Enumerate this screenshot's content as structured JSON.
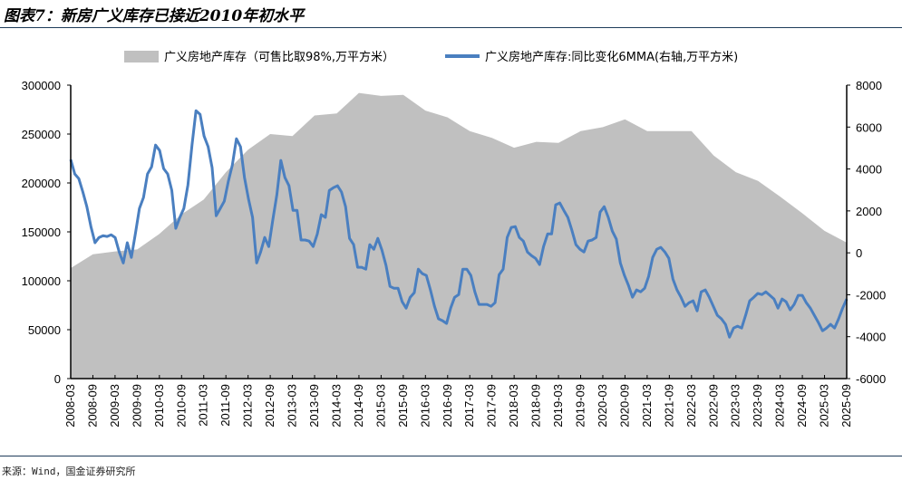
{
  "title": "图表7：新房广义库存已接近2010年初水平",
  "source": "来源：Wind，国金证券研究所",
  "colors": {
    "area": "#c0c0c0",
    "line": "#4a7fc0",
    "rule": "#1f3c5a"
  },
  "chart_data": {
    "type": "area+line",
    "title": "新房广义库存已接近2010年初水平",
    "legend_position": "top-center",
    "x_range": [
      "2008-03",
      "2025-09"
    ],
    "x_ticks": [
      "2008-03",
      "2008-09",
      "2009-03",
      "2009-09",
      "2010-03",
      "2010-09",
      "2011-03",
      "2011-09",
      "2012-03",
      "2012-09",
      "2013-03",
      "2013-09",
      "2014-03",
      "2014-09",
      "2015-03",
      "2015-09",
      "2016-03",
      "2016-09",
      "2017-03",
      "2017-09",
      "2018-03",
      "2018-09",
      "2019-03",
      "2019-09",
      "2020-03",
      "2020-09",
      "2021-03",
      "2021-09",
      "2022-03",
      "2022-09",
      "2023-03",
      "2023-09",
      "2024-03",
      "2024-09",
      "2025-03",
      "2025-09"
    ],
    "y_left": {
      "range": [
        0,
        300000
      ],
      "ticks": [
        "0",
        "50000",
        "100000",
        "150000",
        "200000",
        "250000",
        "300000"
      ]
    },
    "y_right": {
      "range": [
        -6000,
        8000
      ],
      "ticks": [
        "-6000",
        "-4000",
        "-2000",
        "0",
        "2000",
        "4000",
        "6000",
        "8000"
      ]
    },
    "series": [
      {
        "name": "广义房地产库存（可售比取98%,万平方米）",
        "type": "area",
        "axis": "left",
        "sampling": "semiannual from 2008-03 to 2025-09",
        "values": [
          113000,
          127000,
          130000,
          132000,
          148000,
          168000,
          183000,
          211000,
          234000,
          250000,
          248000,
          269000,
          271000,
          292000,
          289000,
          290000,
          274000,
          267000,
          253000,
          246000,
          236000,
          242000,
          241000,
          253000,
          257000,
          265000,
          253000,
          253000,
          253000,
          228000,
          211000,
          202000,
          186000,
          169000,
          151000,
          139000
        ]
      },
      {
        "name": "广义房地产库存:同比变化6MMA(右轴,万平方米)",
        "type": "line",
        "axis": "right",
        "sampling": "approximately monthly, evenly spaced from 2008-03 to 2025-09",
        "values": [
          4450,
          3760,
          3540,
          2900,
          2200,
          1250,
          480,
          730,
          820,
          780,
          860,
          730,
          40,
          -480,
          480,
          -220,
          900,
          2120,
          2640,
          3760,
          4100,
          5140,
          4880,
          4020,
          3760,
          2980,
          1170,
          1690,
          2120,
          3240,
          5140,
          6780,
          6610,
          5570,
          5060,
          4060,
          1770,
          2120,
          2460,
          3410,
          4190,
          5440,
          5060,
          3590,
          2550,
          1690,
          -480,
          40,
          730,
          300,
          1560,
          2770,
          4410,
          3590,
          3200,
          2030,
          2030,
          610,
          610,
          560,
          300,
          900,
          1820,
          1690,
          2980,
          3110,
          3200,
          2900,
          2200,
          690,
          390,
          -690,
          -690,
          -780,
          390,
          170,
          690,
          130,
          -600,
          -1600,
          -1690,
          -1690,
          -2330,
          -2640,
          -2120,
          -1900,
          -780,
          -990,
          -1080,
          -1770,
          -2550,
          -3150,
          -3240,
          -3370,
          -2640,
          -2120,
          -1990,
          -780,
          -780,
          -1080,
          -1860,
          -2460,
          -2460,
          -2460,
          -2550,
          -2380,
          -1040,
          -780,
          730,
          1210,
          1250,
          730,
          560,
          40,
          -130,
          -260,
          -560,
          300,
          900,
          900,
          2290,
          2380,
          2030,
          1690,
          1080,
          390,
          170,
          40,
          560,
          610,
          730,
          1940,
          2200,
          1690,
          1040,
          650,
          -480,
          -1080,
          -1560,
          -2120,
          -1770,
          -1860,
          -1690,
          -1120,
          -220,
          170,
          260,
          40,
          -260,
          -1250,
          -1770,
          -2120,
          -2550,
          -2380,
          -2290,
          -2770,
          -1860,
          -1770,
          -2120,
          -2550,
          -2980,
          -3150,
          -3410,
          -4020,
          -3590,
          -3500,
          -3590,
          -2980,
          -2290,
          -2120,
          -1940,
          -1990,
          -1860,
          -2030,
          -2200,
          -2640,
          -2200,
          -2330,
          -2720,
          -2460,
          -2030,
          -2030,
          -2380,
          -2640,
          -2980,
          -3330,
          -3720,
          -3590,
          -3410,
          -3590,
          -3150,
          -2640,
          -2200
        ]
      }
    ]
  }
}
